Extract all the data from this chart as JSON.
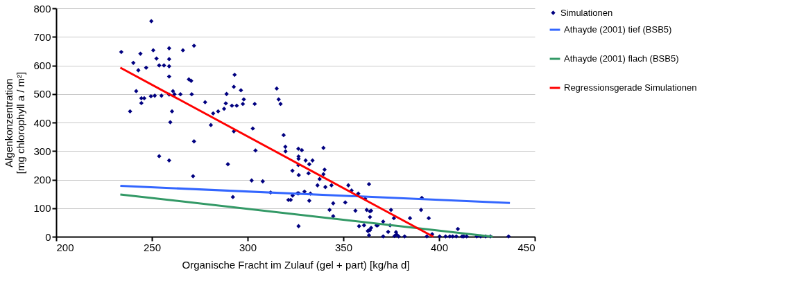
{
  "chart_data": {
    "type": "scatter",
    "xlabel": "Organische Fracht im Zulauf (gel + part) [kg/ha d]",
    "ylabel": "Algenkonzentration\n[mg chlorophyll a / m²]",
    "xlim": [
      200,
      450
    ],
    "xticks": [
      200,
      250,
      300,
      350,
      400,
      450
    ],
    "ylim": [
      0,
      800
    ],
    "yticks": [
      0,
      100,
      200,
      300,
      400,
      500,
      600,
      700,
      800
    ],
    "grid": "y",
    "legend": "right",
    "series": [
      {
        "name": "Simulationen",
        "marker": "diamond",
        "color": "#000080",
        "x": [
          234,
          249.7,
          244,
          240.3,
          250.7,
          252.4,
          259,
          259,
          266.2,
          272,
          242.9,
          247,
          253.8,
          256.3,
          259,
          259,
          269.3,
          270.5,
          241.8,
          244.5,
          246,
          244.5,
          249.5,
          251.5,
          255,
          259,
          261,
          261.8,
          264.9,
          270.8,
          238.6,
          260.5,
          259.6,
          272,
          253.8,
          259,
          271.5,
          277.8,
          282,
          280.8,
          284.6,
          287.7,
          288.6,
          289,
          293.2,
          292.8,
          296.5,
          298,
          297.5,
          291.8,
          294.3,
          303.7,
          292.8,
          289.7,
          292.3,
          302.7,
          304.1,
          302.1,
          307.9,
          312,
          315.2,
          316.2,
          317.2,
          318.8,
          319.7,
          319.8,
          323.4,
          321.3,
          322.5,
          323.5,
          326,
          326.7,
          326.5,
          328.3,
          326.6,
          326.6,
          326.5,
          326.7,
          330.3,
          333.9,
          332.2,
          331.8,
          329.7,
          332.8,
          332.2,
          326.6,
          339.6,
          340.2,
          339.6,
          337.6,
          336.5,
          340.6,
          343.8,
          342.8,
          344.7,
          344.7,
          351,
          352.6,
          354.3,
          357.8,
          356.3,
          358.2,
          360.8,
          361.4,
          363.4,
          362.2,
          363.9,
          362.8,
          363.9,
          363.9,
          363.4,
          364.5,
          363.2,
          364.5,
          367.3,
          367.9,
          370.8,
          374.9,
          376.4,
          374.4,
          373.4,
          377.5,
          377.8,
          376.7,
          378.9,
          370.8,
          382,
          384.8,
          390.6,
          391,
          394.6,
          393.6,
          396.4,
          400.3,
          403.4,
          405.6,
          407.1,
          409,
          409.8,
          412,
          412.9,
          414.4,
          419.7,
          421.7,
          424.3,
          426.8,
          436.3
        ],
        "values": [
          647,
          755,
          641,
          609,
          653,
          624,
          660,
          622,
          653,
          669,
          583,
          592,
          600,
          600,
          597,
          561,
          551,
          546,
          510,
          485,
          485,
          468,
          492,
          494,
          494,
          498,
          510,
          499,
          499,
          499,
          439,
          439,
          401,
          334,
          282,
          267,
          212,
          471,
          432,
          391,
          439,
          448,
          467,
          500,
          567,
          525,
          513,
          481,
          465,
          459,
          459,
          465,
          369,
          254,
          139,
          379,
          302,
          197,
          194,
          155,
          519,
          481,
          465,
          356,
          315,
          299,
          231,
          129,
          129,
          144,
          152,
          152,
          308,
          303,
          281,
          273,
          251,
          216,
          267,
          267,
          254,
          222,
          158,
          151,
          126,
          37,
          311,
          235,
          219,
          202,
          180,
          174,
          180,
          94,
          117,
          72,
          120,
          180,
          162,
          151,
          91,
          37,
          40,
          133,
          184,
          94,
          89,
          20,
          23,
          69,
          5,
          91,
          22,
          31,
          40,
          40,
          53,
          94,
          65,
          40,
          17,
          16,
          8,
          2,
          1,
          1,
          1,
          65,
          94,
          136,
          65,
          1,
          9,
          1,
          1,
          1,
          1,
          1,
          27,
          1,
          1,
          1,
          1,
          1,
          1,
          1,
          1
        ]
      },
      {
        "name": "Athayde (2001) tief (BSB5)",
        "type": "line",
        "line_style": "solid",
        "color": "#3366ff",
        "x": [
          233.5,
          437
        ],
        "values": [
          178,
          118
        ]
      },
      {
        "name": "Athayde (2001) flach (BSB5)",
        "type": "line",
        "line_style": "solid",
        "color": "#339966",
        "x": [
          233.5,
          428
        ],
        "values": [
          148,
          0
        ]
      },
      {
        "name": "Regressionsgerade Simulationen",
        "type": "line",
        "line_style": "solid",
        "color": "#ff0000",
        "x": [
          233.5,
          397
        ],
        "values": [
          592,
          0
        ]
      }
    ]
  }
}
